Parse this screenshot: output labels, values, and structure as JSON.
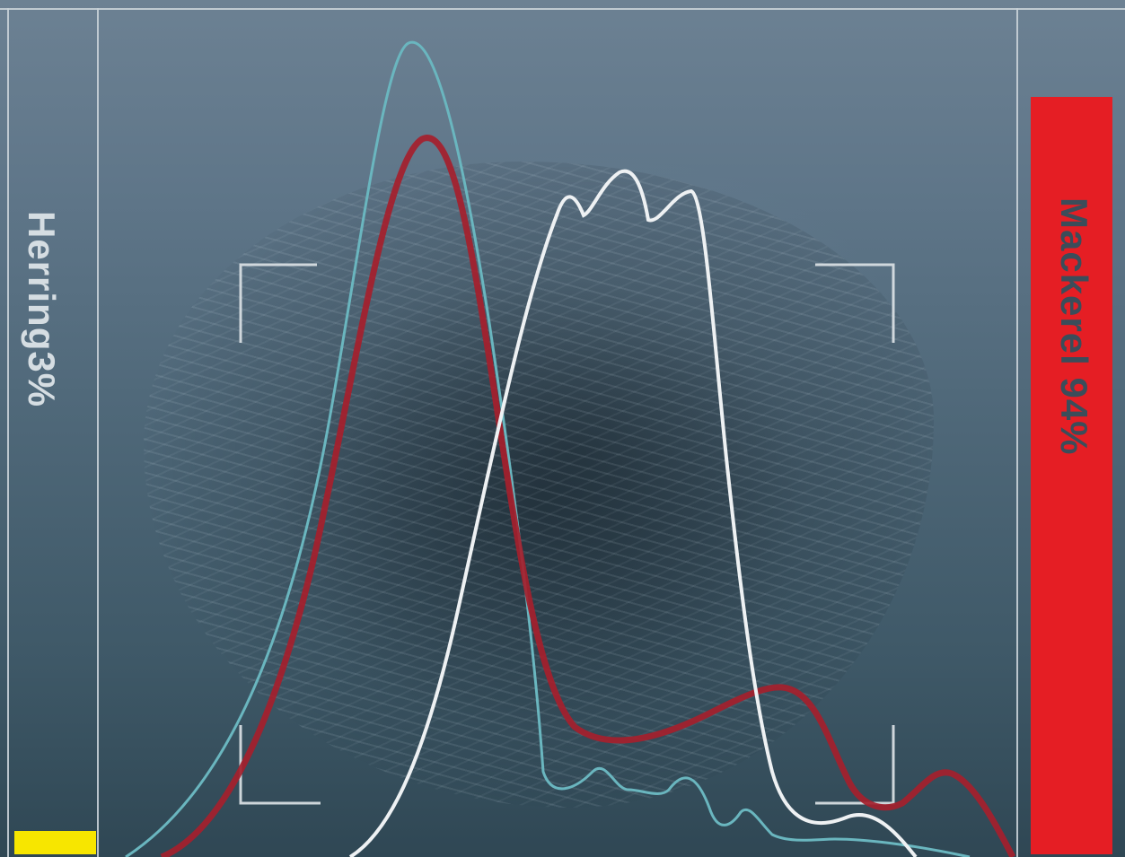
{
  "left_panel": {
    "species": "Herring",
    "percent": "3%",
    "level": 0.03,
    "bar_color": "#f7e600"
  },
  "right_panel": {
    "species": "Mackerel",
    "percent": "94%",
    "level": 0.94,
    "bar_color": "#e51e24"
  },
  "overlay": {
    "curve_colors": [
      "#6ab6bf",
      "#a51f2d",
      "#eef1f3"
    ],
    "bracket_color": "#d7dde1"
  }
}
